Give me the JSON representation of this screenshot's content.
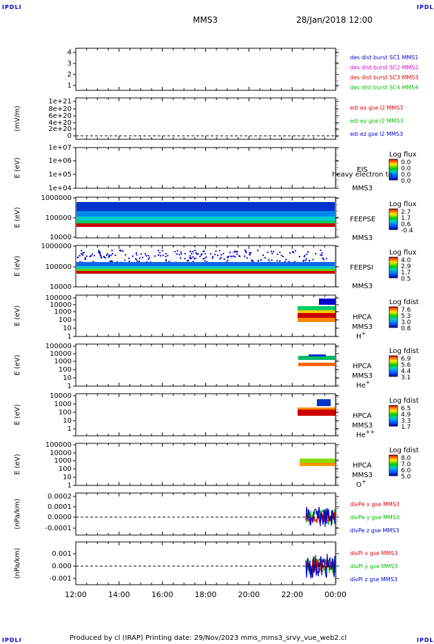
{
  "corners": {
    "tl": "IPDLI",
    "tr": "IPDLI",
    "bl": "IPDLI",
    "br": "IPDLI"
  },
  "header": {
    "spacecraft": "MMS3",
    "datetime": "28/Jan/2018 12:00"
  },
  "footer": {
    "text": "Produced by cl (IRAP)   Printing date: 29/Nov/2023   mms_mms3_srvy_vue_web2.cl"
  },
  "colors": {
    "red": "#dd0000",
    "green": "#00bb00",
    "blue": "#0000cc",
    "magenta": "#cc00cc"
  },
  "chart_data": [
    {
      "type": "line",
      "id": "p1",
      "ylabel": "",
      "ytick_labels": [
        "1",
        "2",
        "3",
        "4"
      ],
      "legend": [
        {
          "text": "des dist burst SC1 MMS1",
          "color": "#0000cc"
        },
        {
          "text": "des dist burst SC2 MMS2",
          "color": "#cc00cc"
        },
        {
          "text": "des dist burst SC3 MMS3",
          "color": "#dd0000"
        },
        {
          "text": "des dist burst SC4 MMS4",
          "color": "#00bb00"
        }
      ]
    },
    {
      "type": "line",
      "id": "p2",
      "ylabel": "(mV/m)",
      "ytick_labels": [
        "1e+21",
        "8e+20",
        "6e+20",
        "4e+20",
        "2e+20",
        "0"
      ],
      "legend": [
        {
          "text": "edi ex gse l2 MMS3",
          "color": "#dd0000"
        },
        {
          "text": "edi ey gse l2 MMS3",
          "color": "#00bb00"
        },
        {
          "text": "edi ez gse l2 MMS3",
          "color": "#0000cc"
        }
      ]
    },
    {
      "type": "heatmap",
      "id": "p3",
      "ylabel": "E (eV)",
      "ytick_labels": [
        "1e+07",
        "1e+06",
        "1e+05",
        "1e+04"
      ],
      "inst": [
        "EIS",
        "MMS3"
      ],
      "overlay": "heavy electron to",
      "cbar_title": "Log flux",
      "cbar_ticks": [
        "0.0",
        "0.0",
        "0.0",
        "0.0"
      ]
    },
    {
      "type": "heatmap",
      "id": "p4",
      "ylabel": "E (eV)",
      "ytick_labels": [
        "1000000",
        "100000",
        "10000"
      ],
      "inst": [
        "FEEPSE",
        "MMS3"
      ],
      "cbar_title": "Log flux",
      "cbar_ticks": [
        "2.7",
        "1.7",
        "0.6",
        "-0.4"
      ]
    },
    {
      "type": "heatmap",
      "id": "p5",
      "ylabel": "E (eV)",
      "ytick_labels": [
        "1000000",
        "100000",
        "10000"
      ],
      "inst": [
        "FEEPSI",
        "MMS3"
      ],
      "cbar_title": "Log flux",
      "cbar_ticks": [
        "4.0",
        "2.9",
        "1.7",
        "0.5"
      ]
    },
    {
      "type": "heatmap",
      "id": "p6",
      "ylabel": "E (eV)",
      "ytick_labels": [
        "100000",
        "10000",
        "1000",
        "100",
        "10",
        "1"
      ],
      "inst": [
        "HPCA",
        "MMS3"
      ],
      "species": "H",
      "species_sup": "+",
      "cbar_title": "Log fdist",
      "cbar_ticks": [
        "7.6",
        "5.3",
        "3.0",
        "0.8"
      ]
    },
    {
      "type": "heatmap",
      "id": "p7",
      "ylabel": "E (eV)",
      "ytick_labels": [
        "100000",
        "10000",
        "1000",
        "100",
        "10",
        "1"
      ],
      "inst": [
        "HPCA",
        "MMS3"
      ],
      "species": "He",
      "species_sup": "+",
      "cbar_title": "Log fdist",
      "cbar_ticks": [
        "6.9",
        "5.6",
        "4.4",
        "3.1"
      ]
    },
    {
      "type": "heatmap",
      "id": "p8",
      "ylabel": "E (eV)",
      "ytick_labels": [
        "10000",
        "1000",
        "100",
        "10",
        "1"
      ],
      "inst": [
        "HPCA",
        "MMS3"
      ],
      "species": "He",
      "species_sup": "++",
      "cbar_title": "Log fdist",
      "cbar_ticks": [
        "6.5",
        "4.9",
        "3.3",
        "1.7"
      ]
    },
    {
      "type": "heatmap",
      "id": "p9",
      "ylabel": "E (eV)",
      "ytick_labels": [
        "100000",
        "10000",
        "1000",
        "100",
        "10",
        "1"
      ],
      "inst": [
        "HPCA",
        "MMS3"
      ],
      "species": "O",
      "species_sup": "+",
      "cbar_title": "Log fdist",
      "cbar_ticks": [
        "8.0",
        "7.0",
        "6.0",
        "5.0"
      ]
    },
    {
      "type": "line",
      "id": "p10",
      "ylabel": "(nPa/km)",
      "ytick_labels": [
        "0.0002",
        "0.0001",
        "0.0000",
        "-0.0001"
      ],
      "legend": [
        {
          "text": "divPe x gse MMS3",
          "color": "#dd0000"
        },
        {
          "text": "divPe y gse MMS3",
          "color": "#00bb00"
        },
        {
          "text": "divPe z gse MMS3",
          "color": "#0000cc"
        }
      ]
    },
    {
      "type": "line",
      "id": "p11",
      "ylabel": "(nPa/km)",
      "ytick_labels": [
        "0.001",
        "0.000",
        "-0.001"
      ],
      "legend": [
        {
          "text": "divPi x gse MMS3",
          "color": "#dd0000"
        },
        {
          "text": "divPi y gse MMS3",
          "color": "#00bb00"
        },
        {
          "text": "divPi z gse MMS3",
          "color": "#0000cc"
        }
      ]
    }
  ],
  "xaxis": {
    "tick_labels": [
      "12:00",
      "14:00",
      "16:00",
      "18:00",
      "20:00",
      "22:00",
      "00:00"
    ]
  }
}
